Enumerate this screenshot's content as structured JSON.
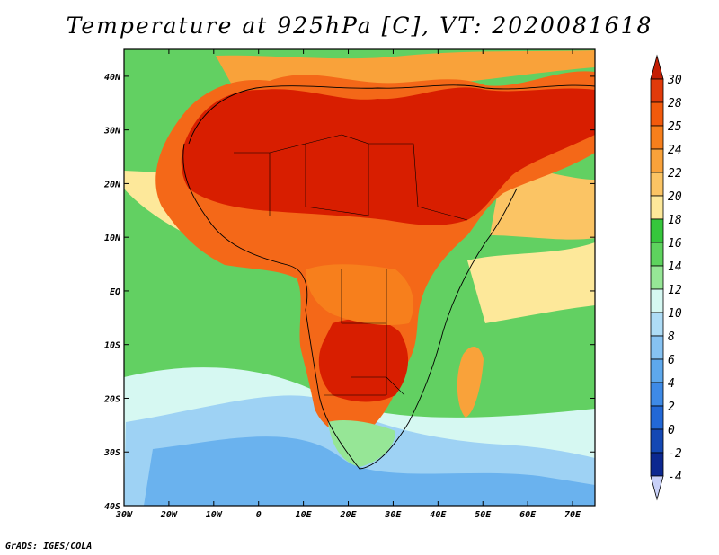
{
  "title": "Temperature at 925hPa [C], VT: 2020081618",
  "footer": "GrADS: IGES/COLA",
  "map": {
    "lon_range": [
      -30,
      75
    ],
    "lat_range": [
      -40,
      45
    ],
    "lon_ticks": [
      {
        "lon": -30,
        "label": "30W"
      },
      {
        "lon": -20,
        "label": "20W"
      },
      {
        "lon": -10,
        "label": "10W"
      },
      {
        "lon": 0,
        "label": "0"
      },
      {
        "lon": 10,
        "label": "10E"
      },
      {
        "lon": 20,
        "label": "20E"
      },
      {
        "lon": 30,
        "label": "30E"
      },
      {
        "lon": 40,
        "label": "40E"
      },
      {
        "lon": 50,
        "label": "50E"
      },
      {
        "lon": 60,
        "label": "60E"
      },
      {
        "lon": 70,
        "label": "70E"
      }
    ],
    "lat_ticks": [
      {
        "lat": 40,
        "label": "40N"
      },
      {
        "lat": 30,
        "label": "30N"
      },
      {
        "lat": 20,
        "label": "20N"
      },
      {
        "lat": 10,
        "label": "10N"
      },
      {
        "lat": 0,
        "label": "EQ"
      },
      {
        "lat": -10,
        "label": "10S"
      },
      {
        "lat": -20,
        "label": "20S"
      },
      {
        "lat": -30,
        "label": "30S"
      },
      {
        "lat": -40,
        "label": "40S"
      }
    ]
  },
  "colorbar": {
    "levels": [
      {
        "label": "30",
        "color": "#e13a0a"
      },
      {
        "label": "28",
        "color": "#f25a0c"
      },
      {
        "label": "25",
        "color": "#f77f1c"
      },
      {
        "label": "24",
        "color": "#f9a23a"
      },
      {
        "label": "22",
        "color": "#fbc464"
      },
      {
        "label": "20",
        "color": "#fde89a"
      },
      {
        "label": "18",
        "color": "#36c63c"
      },
      {
        "label": "16",
        "color": "#5ed35e"
      },
      {
        "label": "14",
        "color": "#96e696"
      },
      {
        "label": "12",
        "color": "#d6f8f2"
      },
      {
        "label": "10",
        "color": "#aedcf6"
      },
      {
        "label": "8",
        "color": "#86c2f2"
      },
      {
        "label": "6",
        "color": "#5ea8ec"
      },
      {
        "label": "4",
        "color": "#3e8ae6"
      },
      {
        "label": "2",
        "color": "#2268d6"
      },
      {
        "label": "0",
        "color": "#1448b4"
      },
      {
        "label": "-2",
        "color": "#0c2890"
      },
      {
        "label": "-4",
        "color": "#060e6c"
      }
    ],
    "top_color": "#c41e04",
    "bottom_color": "#c8d0f8"
  },
  "colors": {
    "ocean": "#62d062",
    "hot_land": "#d81e00",
    "land_orange": "#f46818",
    "cool_ocean": "#a8dcf4"
  }
}
